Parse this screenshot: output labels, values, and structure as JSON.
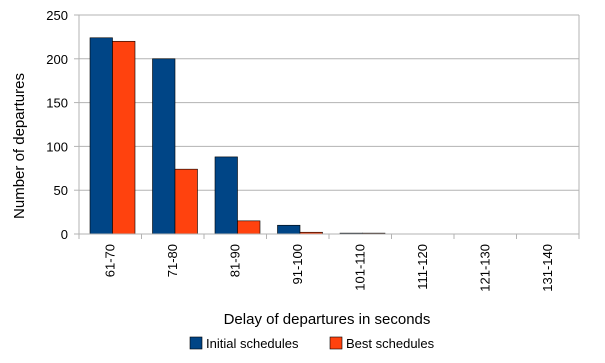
{
  "chart_data": {
    "type": "bar",
    "title": "",
    "xlabel": "Delay of departures in seconds",
    "ylabel": "Number of departures",
    "categories": [
      "61-70",
      "71-80",
      "81-90",
      "91-100",
      "101-110",
      "111-120",
      "121-130",
      "131-140"
    ],
    "series": [
      {
        "name": "Initial schedules",
        "color": "#004586",
        "values": [
          224,
          200,
          88,
          10,
          1,
          0,
          0,
          0
        ]
      },
      {
        "name": "Best schedules",
        "color": "#ff420e",
        "values": [
          220,
          74,
          15,
          2,
          1,
          0,
          0,
          0
        ]
      }
    ],
    "ylim": [
      0,
      250
    ],
    "yticks": [
      0,
      50,
      100,
      150,
      200,
      250
    ],
    "grid": true,
    "legend_position": "bottom"
  }
}
